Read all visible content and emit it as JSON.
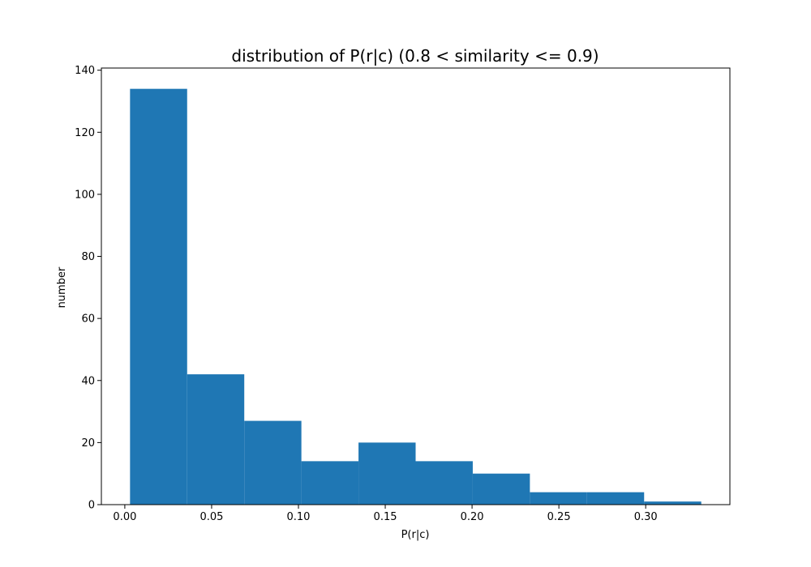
{
  "chart_data": {
    "type": "bar",
    "title": "distribution of P(r|c) (0.8 < similarity <= 0.9)",
    "xlabel": "P(r|c)",
    "ylabel": "number",
    "bin_edges": [
      0.003,
      0.0359,
      0.0688,
      0.1017,
      0.1346,
      0.1675,
      0.2004,
      0.2333,
      0.2662,
      0.2991,
      0.332
    ],
    "values": [
      134,
      42,
      27,
      14,
      20,
      14,
      10,
      4,
      4,
      1
    ],
    "xlim": [
      -0.0135,
      0.3485
    ],
    "ylim": [
      0,
      140.7
    ],
    "xticks": [
      0.0,
      0.05,
      0.1,
      0.15,
      0.2,
      0.25,
      0.3
    ],
    "xtick_labels": [
      "0.00",
      "0.05",
      "0.10",
      "0.15",
      "0.20",
      "0.25",
      "0.30"
    ],
    "yticks": [
      0,
      20,
      40,
      60,
      80,
      100,
      120,
      140
    ],
    "ytick_labels": [
      "0",
      "20",
      "40",
      "60",
      "80",
      "100",
      "120",
      "140"
    ],
    "bar_color": "#1f77b4",
    "grid": false,
    "legend": "none"
  }
}
